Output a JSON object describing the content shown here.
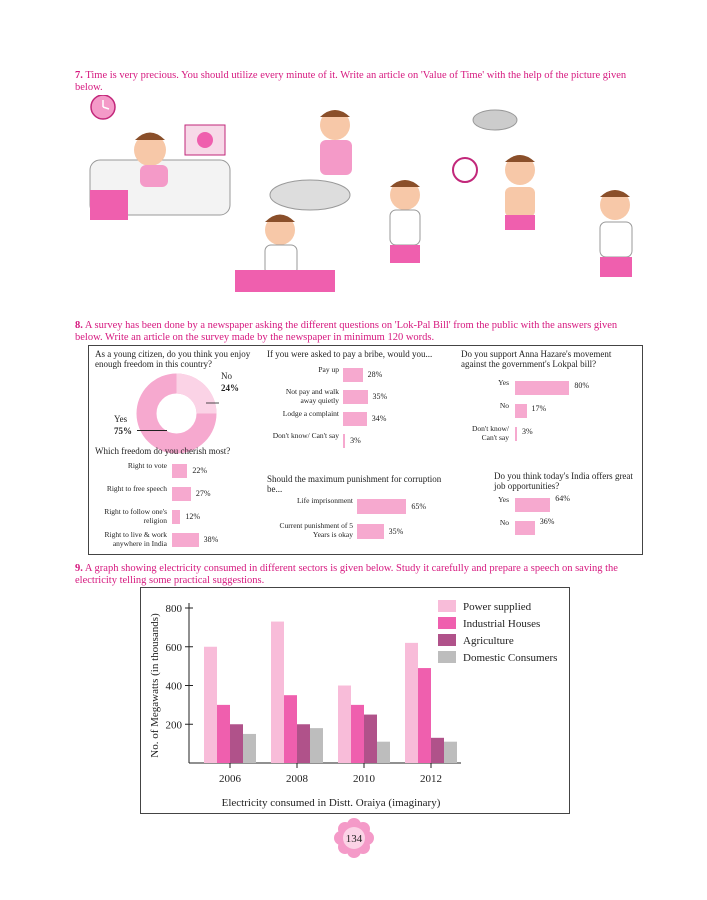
{
  "q7": {
    "number": "7.",
    "text": "Time is very precious. You should utilize every minute of it. Write an article on 'Value of Time' with the help of the picture given below."
  },
  "q8": {
    "number": "8.",
    "text": "A survey has been done by a newspaper asking the different questions on 'Lok-Pal Bill' from the public with the answers given below. Write an article on the survey made by the newspaper in minimum 120 words.",
    "freedom": {
      "question": "As a young citizen, do you think you enjoy enough freedom in this country?",
      "no_label": "No",
      "no_value": "24%",
      "yes_label": "Yes",
      "yes_value": "75%"
    },
    "cherish": {
      "question": "Which freedom do you cherish most?",
      "items": [
        {
          "label": "Right to vote",
          "value": "22%",
          "pct": 22
        },
        {
          "label": "Right to free speech",
          "value": "27%",
          "pct": 27
        },
        {
          "label": "Right to follow one's religion",
          "value": "12%",
          "pct": 12
        },
        {
          "label": "Right to live & work anywhere in India",
          "value": "38%",
          "pct": 38
        }
      ]
    },
    "bribe": {
      "question": "If you were asked to pay a bribe, would you...",
      "items": [
        {
          "label": "Pay up",
          "value": "28%",
          "pct": 28
        },
        {
          "label": "Not pay and walk away quietly",
          "value": "35%",
          "pct": 35
        },
        {
          "label": "Lodge a complaint",
          "value": "34%",
          "pct": 34
        },
        {
          "label": "Don't know/ Can't say",
          "value": "3%",
          "pct": 3
        }
      ]
    },
    "punishment": {
      "question": "Should the maximum punishment for corruption be...",
      "items": [
        {
          "label": "Life imprisonment",
          "value": "65%",
          "pct": 65
        },
        {
          "label": "Current punishment of 5 Years is okay",
          "value": "35%",
          "pct": 35
        }
      ]
    },
    "anna": {
      "question": "Do you support Anna Hazare's movement against the government's Lokpal bill?",
      "items": [
        {
          "label": "Yes",
          "value": "80%",
          "pct": 80
        },
        {
          "label": "No",
          "value": "17%",
          "pct": 17
        },
        {
          "label": "Don't know/ Can't say",
          "value": "3%",
          "pct": 3
        }
      ]
    },
    "jobs": {
      "question": "Do you think today's India offers great job opportunities?",
      "items": [
        {
          "label": "Yes",
          "value": "64%",
          "pct": 64
        },
        {
          "label": "No",
          "value": "36%",
          "pct": 36
        }
      ]
    }
  },
  "q9": {
    "number": "9.",
    "text": "A graph showing electricity consumed in different sectors is given below. Study it carefully and prepare a speech on saving the electricity telling some practical suggestions."
  },
  "chart_data": {
    "type": "bar",
    "title": "",
    "xlabel": "Electricity consumed in Distt. Oraiya (imaginary)",
    "ylabel": "No. of Megawatts (in thousands)",
    "categories": [
      "2006",
      "2008",
      "2010",
      "2012"
    ],
    "ylim": [
      0,
      800
    ],
    "yticks": [
      200,
      400,
      600,
      800
    ],
    "legend_position": "top-right",
    "grid": false,
    "series": [
      {
        "name": "Power supplied",
        "color": "#f8bcd9",
        "values": [
          600,
          730,
          400,
          620
        ]
      },
      {
        "name": "Industrial Houses",
        "color": "#ef5fae",
        "values": [
          300,
          350,
          300,
          490
        ]
      },
      {
        "name": "Agriculture",
        "color": "#b0528a",
        "values": [
          200,
          200,
          250,
          130
        ]
      },
      {
        "name": "Domestic Consumers",
        "color": "#bdbdbd",
        "values": [
          150,
          180,
          110,
          110
        ]
      }
    ]
  },
  "page_number": "134",
  "colors": {
    "heading": "#d6197f",
    "bar": "#f6a9cf"
  }
}
